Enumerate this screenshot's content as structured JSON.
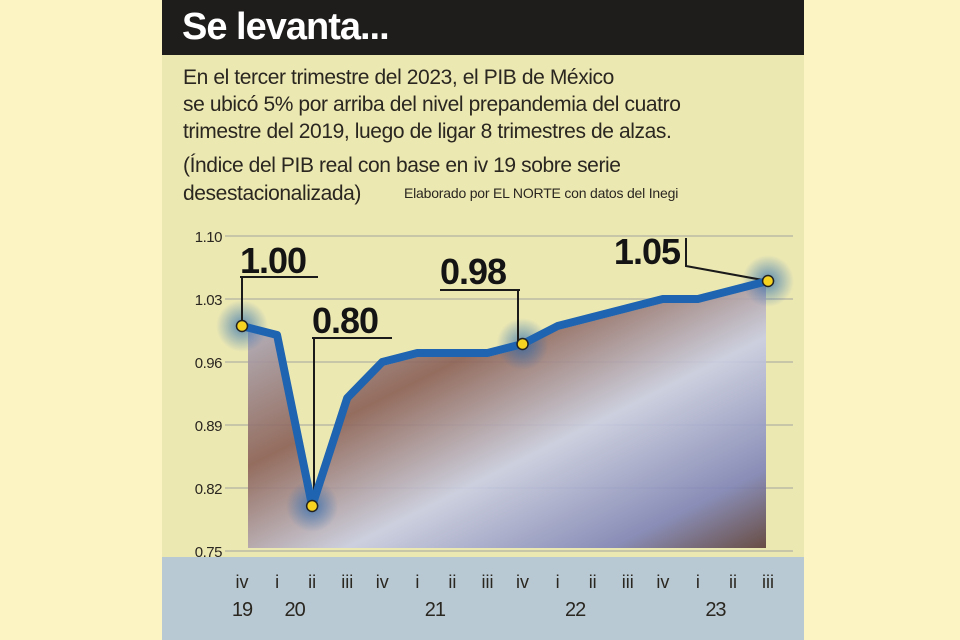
{
  "header": {
    "title": "Se levanta..."
  },
  "description": {
    "lines": [
      "En el tercer trimestre del 2023, el PIB de México",
      "se ubicó 5% por arriba del nivel prepandemia del cuatro",
      "trimestre del 2019, luego de ligar 8 trimestres de alzas."
    ],
    "note_lines": [
      "(Índice del PIB real con base en iv 19 sobre serie",
      "desestacionalizada)"
    ],
    "credit": "Elaborado por EL NORTE con datos del Inegi"
  },
  "colors": {
    "line": "#1e64b0",
    "marker": "#f5d320",
    "axis_band": "#b9c9d3",
    "header": "#1f1d1c"
  },
  "chart_data": {
    "type": "line",
    "title": "Se levanta...",
    "xlabel": "",
    "ylabel": "",
    "ylim": [
      0.75,
      1.1
    ],
    "yticks": [
      "1.10",
      "1.03",
      "0.96",
      "0.89",
      "0.82",
      "0.75"
    ],
    "ytick_values": [
      1.1,
      1.03,
      0.96,
      0.89,
      0.82,
      0.75
    ],
    "grid": true,
    "x": [
      "iv",
      "i",
      "ii",
      "iii",
      "iv",
      "i",
      "ii",
      "iii",
      "iv",
      "i",
      "ii",
      "iii",
      "iv",
      "i",
      "ii",
      "iii"
    ],
    "years": [
      {
        "label": "19",
        "index": 0
      },
      {
        "label": "20",
        "index": 1.5
      },
      {
        "label": "21",
        "index": 5.5
      },
      {
        "label": "22",
        "index": 9.5
      },
      {
        "label": "23",
        "index": 13.5
      }
    ],
    "series": [
      {
        "name": "Índice del PIB real",
        "values": [
          1.0,
          0.99,
          0.8,
          0.92,
          0.96,
          0.97,
          0.97,
          0.97,
          0.98,
          1.0,
          1.01,
          1.02,
          1.03,
          1.03,
          1.04,
          1.05
        ]
      }
    ],
    "annotations": [
      {
        "index": 0,
        "label": "1.00"
      },
      {
        "index": 2,
        "label": "0.80"
      },
      {
        "index": 8,
        "label": "0.98"
      },
      {
        "index": 15,
        "label": "1.05"
      }
    ]
  }
}
